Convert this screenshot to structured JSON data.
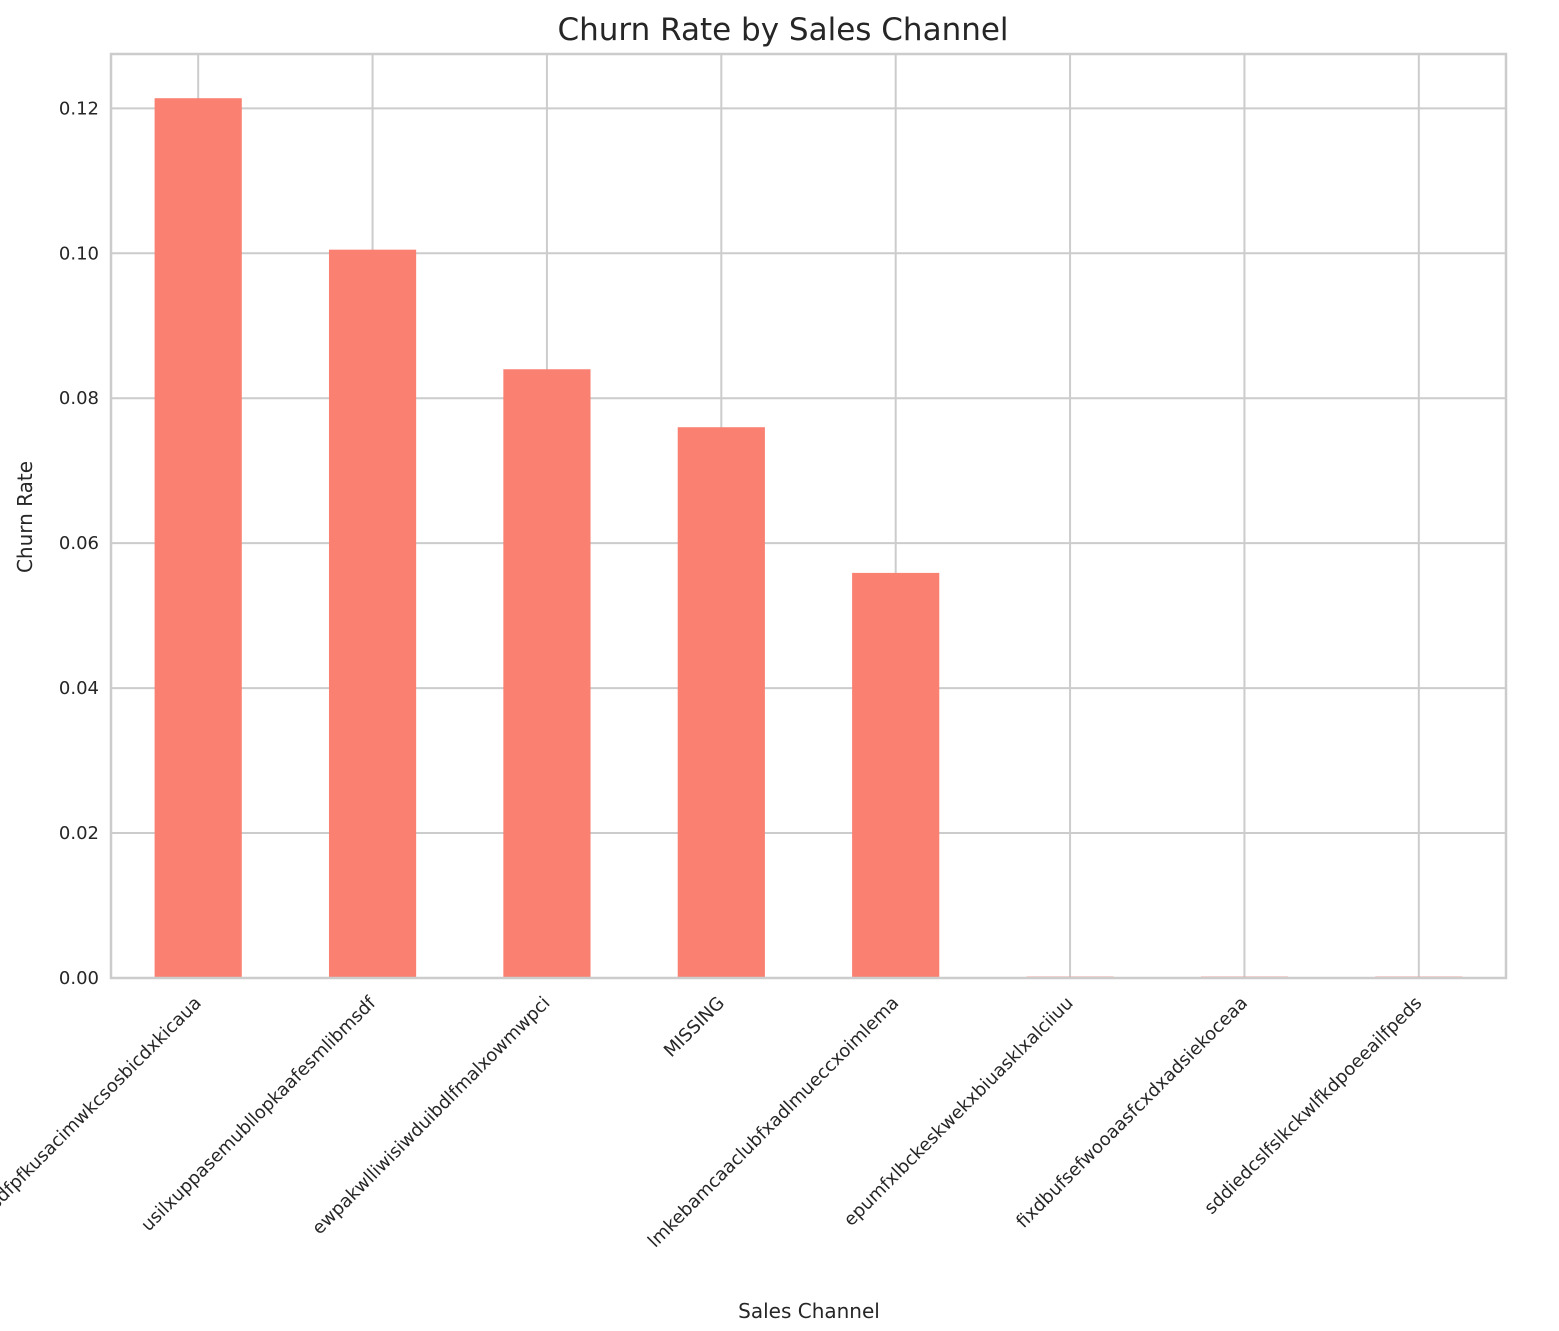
{
  "chart_data": {
    "type": "bar",
    "title": "Churn Rate by Sales Channel",
    "xlabel": "Sales Channel",
    "ylabel": "Churn Rate",
    "categories": [
      "foosdfpfkusacimwkcsosbicdxkicaua",
      "usilxuppasemubllopkaafesmlibmsdf",
      "ewpakwlliwisiwduibdlfmalxowmwpci",
      "MISSING",
      "lmkebamcaaclubfxadlmueccxoimlema",
      "epumfxlbckeskwekxbiuasklxalciiuu",
      "fixdbufsefwooaasfcxdxadsiekoceaa",
      "sddiedcslfslkckwlfkdpoeeailfpeds"
    ],
    "values": [
      0.1214,
      0.1005,
      0.084,
      0.076,
      0.0559,
      0.0,
      0.0,
      0.0
    ],
    "ylim": [
      0,
      0.1275
    ],
    "yticks": [
      0.0,
      0.02,
      0.04,
      0.06,
      0.08,
      0.1,
      0.12
    ],
    "ytick_labels": [
      "0.00",
      "0.02",
      "0.04",
      "0.06",
      "0.08",
      "0.10",
      "0.12"
    ],
    "grid": true,
    "bar_color": "#fa8072",
    "grid_color": "#cccccc",
    "text_color": "#262626"
  }
}
